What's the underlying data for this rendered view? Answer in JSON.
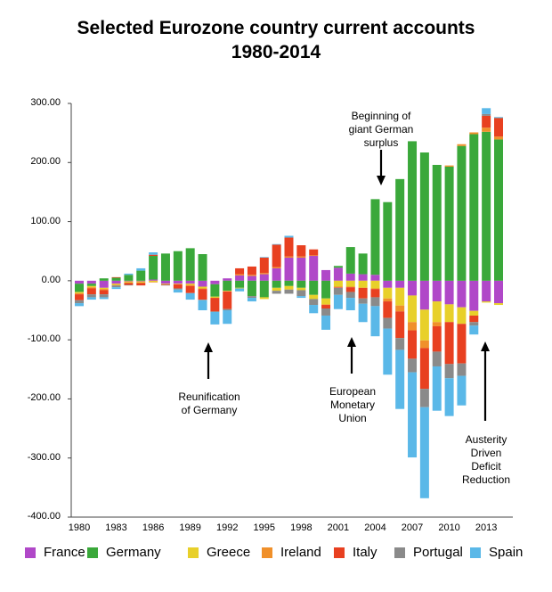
{
  "chart_data": {
    "type": "bar",
    "stacked": true,
    "title_lines": [
      "Selected Eurozone country current accounts",
      "1980-2014"
    ],
    "x": [
      1980,
      1981,
      1982,
      1983,
      1984,
      1985,
      1986,
      1987,
      1988,
      1989,
      1990,
      1991,
      1992,
      1993,
      1994,
      1995,
      1996,
      1997,
      1998,
      1999,
      2000,
      2001,
      2002,
      2003,
      2004,
      2005,
      2006,
      2007,
      2008,
      2009,
      2010,
      2011,
      2012,
      2013,
      2014
    ],
    "xticks": [
      "1980",
      "1983",
      "1986",
      "1989",
      "1992",
      "1995",
      "1998",
      "2001",
      "2004",
      "2007",
      "2010",
      "2013"
    ],
    "yticks": [
      "300.00",
      "200.00",
      "100.00",
      "0.00",
      "-100.00",
      "-200.00",
      "-300.00",
      "-400.00"
    ],
    "ylim": [
      -400,
      300
    ],
    "series": [
      {
        "name": "France",
        "color": "#b048c8",
        "values": [
          -5,
          -5,
          -12,
          -5,
          -1,
          -1,
          2,
          -5,
          -5,
          -5,
          -10,
          -6,
          4,
          9,
          8,
          11,
          21,
          39,
          39,
          42,
          18,
          22,
          12,
          11,
          10,
          -12,
          -12,
          -25,
          -49,
          -35,
          -40,
          -45,
          -51,
          -35,
          -38
        ]
      },
      {
        "name": "Germany",
        "color": "#3aa83a",
        "values": [
          -14,
          -4,
          4,
          5,
          10,
          17,
          40,
          46,
          50,
          55,
          45,
          -21,
          -17,
          -12,
          -26,
          -28,
          -12,
          -9,
          -12,
          -24,
          -30,
          3,
          45,
          35,
          128,
          133,
          172,
          236,
          217,
          196,
          193,
          228,
          248,
          252,
          239
        ]
      },
      {
        "name": "Greece",
        "color": "#e8d02a",
        "values": [
          -2,
          -2,
          -2,
          -2,
          -2,
          -2,
          -2,
          -1,
          -1,
          -2,
          -3,
          -2,
          -1,
          -1,
          0,
          -3,
          -5,
          -6,
          -4,
          -7,
          -10,
          -10,
          -10,
          -12,
          -13,
          -18,
          -30,
          -45,
          -52,
          -35,
          -30,
          -28,
          -8,
          -2,
          -3
        ]
      },
      {
        "name": "Ireland",
        "color": "#f0902a",
        "values": [
          -2,
          -2,
          -2,
          -1,
          -1,
          -1,
          -1,
          0,
          0,
          -2,
          -1,
          0,
          0,
          2,
          2,
          2,
          2,
          2,
          2,
          1,
          -1,
          -1,
          -1,
          0,
          -1,
          -5,
          -10,
          -14,
          -13,
          -7,
          2,
          3,
          3,
          7,
          5
        ]
      },
      {
        "name": "Italy",
        "color": "#e84020",
        "values": [
          -10,
          -10,
          -7,
          1,
          -3,
          -4,
          2,
          -1,
          -7,
          -12,
          -18,
          -23,
          -30,
          10,
          14,
          26,
          38,
          32,
          19,
          10,
          -6,
          -1,
          -8,
          -18,
          -14,
          -28,
          -45,
          -48,
          -69,
          -43,
          -71,
          -67,
          -11,
          20,
          31
        ]
      },
      {
        "name": "Portugal",
        "color": "#8a8a8a",
        "values": [
          -5,
          -5,
          -5,
          -3,
          -1,
          0,
          0,
          -1,
          -2,
          0,
          -1,
          -1,
          -2,
          0,
          -3,
          0,
          -5,
          -7,
          -10,
          -10,
          -12,
          -12,
          -10,
          -9,
          -15,
          -18,
          -20,
          -23,
          -31,
          -25,
          -24,
          -21,
          -6,
          3,
          1
        ]
      },
      {
        "name": "Spain",
        "color": "#5ab8e8",
        "values": [
          -5,
          -4,
          -3,
          -3,
          2,
          4,
          4,
          0,
          -5,
          -11,
          -17,
          -21,
          -23,
          -5,
          -6,
          1,
          1,
          3,
          -3,
          -14,
          -24,
          -24,
          -21,
          -31,
          -51,
          -78,
          -100,
          -144,
          -154,
          -75,
          -64,
          -50,
          -15,
          10,
          1
        ]
      }
    ]
  },
  "annotations": [
    {
      "id": "german-surplus",
      "lines": [
        "Beginning of",
        "giant German",
        "surplus"
      ]
    },
    {
      "id": "reunification",
      "lines": [
        "Reunification",
        "of Germany"
      ]
    },
    {
      "id": "emu",
      "lines": [
        "European",
        "Monetary",
        "Union"
      ]
    },
    {
      "id": "austerity",
      "lines": [
        "Austerity",
        "Driven",
        "Deficit",
        "Reduction"
      ]
    }
  ]
}
